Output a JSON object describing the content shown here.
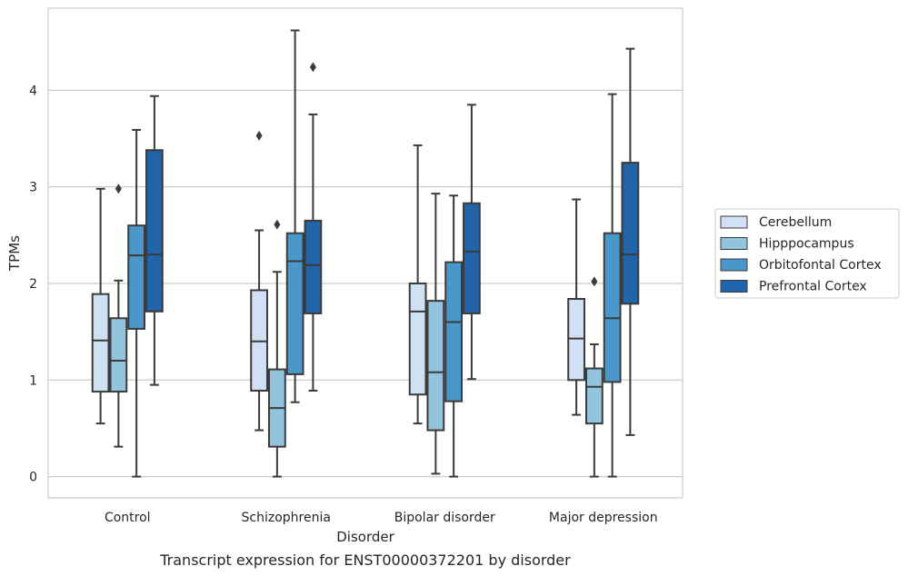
{
  "caption": "Transcript expression for ENST00000372201 by disorder",
  "chart_data": {
    "type": "box",
    "xlabel": "Disorder",
    "ylabel": "TPMs",
    "ylim": [
      -0.22,
      4.85
    ],
    "yticks": [
      0,
      1,
      2,
      3,
      4
    ],
    "categories": [
      "Control",
      "Schizophrenia",
      "Bipolar disorder",
      "Major depression"
    ],
    "grid": "horizontal",
    "legend_position": "right",
    "series": [
      {
        "name": "Cerebellum",
        "color": "#cfe1f2",
        "boxes": [
          {
            "whisker_low": 0.55,
            "q1": 0.88,
            "median": 1.41,
            "q3": 1.89,
            "whisker_high": 2.98,
            "outliers": []
          },
          {
            "whisker_low": 0.48,
            "q1": 0.89,
            "median": 1.4,
            "q3": 1.93,
            "whisker_high": 2.55,
            "outliers": [
              3.53
            ]
          },
          {
            "whisker_low": 0.55,
            "q1": 0.85,
            "median": 1.71,
            "q3": 2.0,
            "whisker_high": 3.43,
            "outliers": []
          },
          {
            "whisker_low": 0.64,
            "q1": 1.0,
            "median": 1.43,
            "q3": 1.84,
            "whisker_high": 2.87,
            "outliers": []
          }
        ]
      },
      {
        "name": "Hipppocampus",
        "color": "#93c4de",
        "boxes": [
          {
            "whisker_low": 0.31,
            "q1": 0.88,
            "median": 1.2,
            "q3": 1.64,
            "whisker_high": 2.03,
            "outliers": [
              2.98
            ]
          },
          {
            "whisker_low": 0.0,
            "q1": 0.31,
            "median": 0.71,
            "q3": 1.11,
            "whisker_high": 2.12,
            "outliers": [
              2.61
            ]
          },
          {
            "whisker_low": 0.03,
            "q1": 0.48,
            "median": 1.08,
            "q3": 1.82,
            "whisker_high": 2.93,
            "outliers": []
          },
          {
            "whisker_low": 0.0,
            "q1": 0.55,
            "median": 0.93,
            "q3": 1.12,
            "whisker_high": 1.37,
            "outliers": [
              2.02
            ]
          }
        ]
      },
      {
        "name": "Orbitofontal Cortex",
        "color": "#4a98c9",
        "boxes": [
          {
            "whisker_low": 0.0,
            "q1": 1.53,
            "median": 2.29,
            "q3": 2.6,
            "whisker_high": 3.59,
            "outliers": []
          },
          {
            "whisker_low": 0.77,
            "q1": 1.06,
            "median": 2.23,
            "q3": 2.52,
            "whisker_high": 4.62,
            "outliers": []
          },
          {
            "whisker_low": 0.0,
            "q1": 0.78,
            "median": 1.6,
            "q3": 2.22,
            "whisker_high": 2.91,
            "outliers": []
          },
          {
            "whisker_low": 0.0,
            "q1": 0.98,
            "median": 1.64,
            "q3": 2.52,
            "whisker_high": 3.96,
            "outliers": []
          }
        ]
      },
      {
        "name": "Prefrontal Cortex",
        "color": "#2164aa",
        "boxes": [
          {
            "whisker_low": 0.95,
            "q1": 1.71,
            "median": 2.3,
            "q3": 3.38,
            "whisker_high": 3.94,
            "outliers": []
          },
          {
            "whisker_low": 0.89,
            "q1": 1.69,
            "median": 2.19,
            "q3": 2.65,
            "whisker_high": 3.75,
            "outliers": [
              4.24
            ]
          },
          {
            "whisker_low": 1.01,
            "q1": 1.69,
            "median": 2.33,
            "q3": 2.83,
            "whisker_high": 3.85,
            "outliers": []
          },
          {
            "whisker_low": 0.43,
            "q1": 1.79,
            "median": 2.3,
            "q3": 3.25,
            "whisker_high": 4.43,
            "outliers": []
          }
        ]
      }
    ]
  }
}
